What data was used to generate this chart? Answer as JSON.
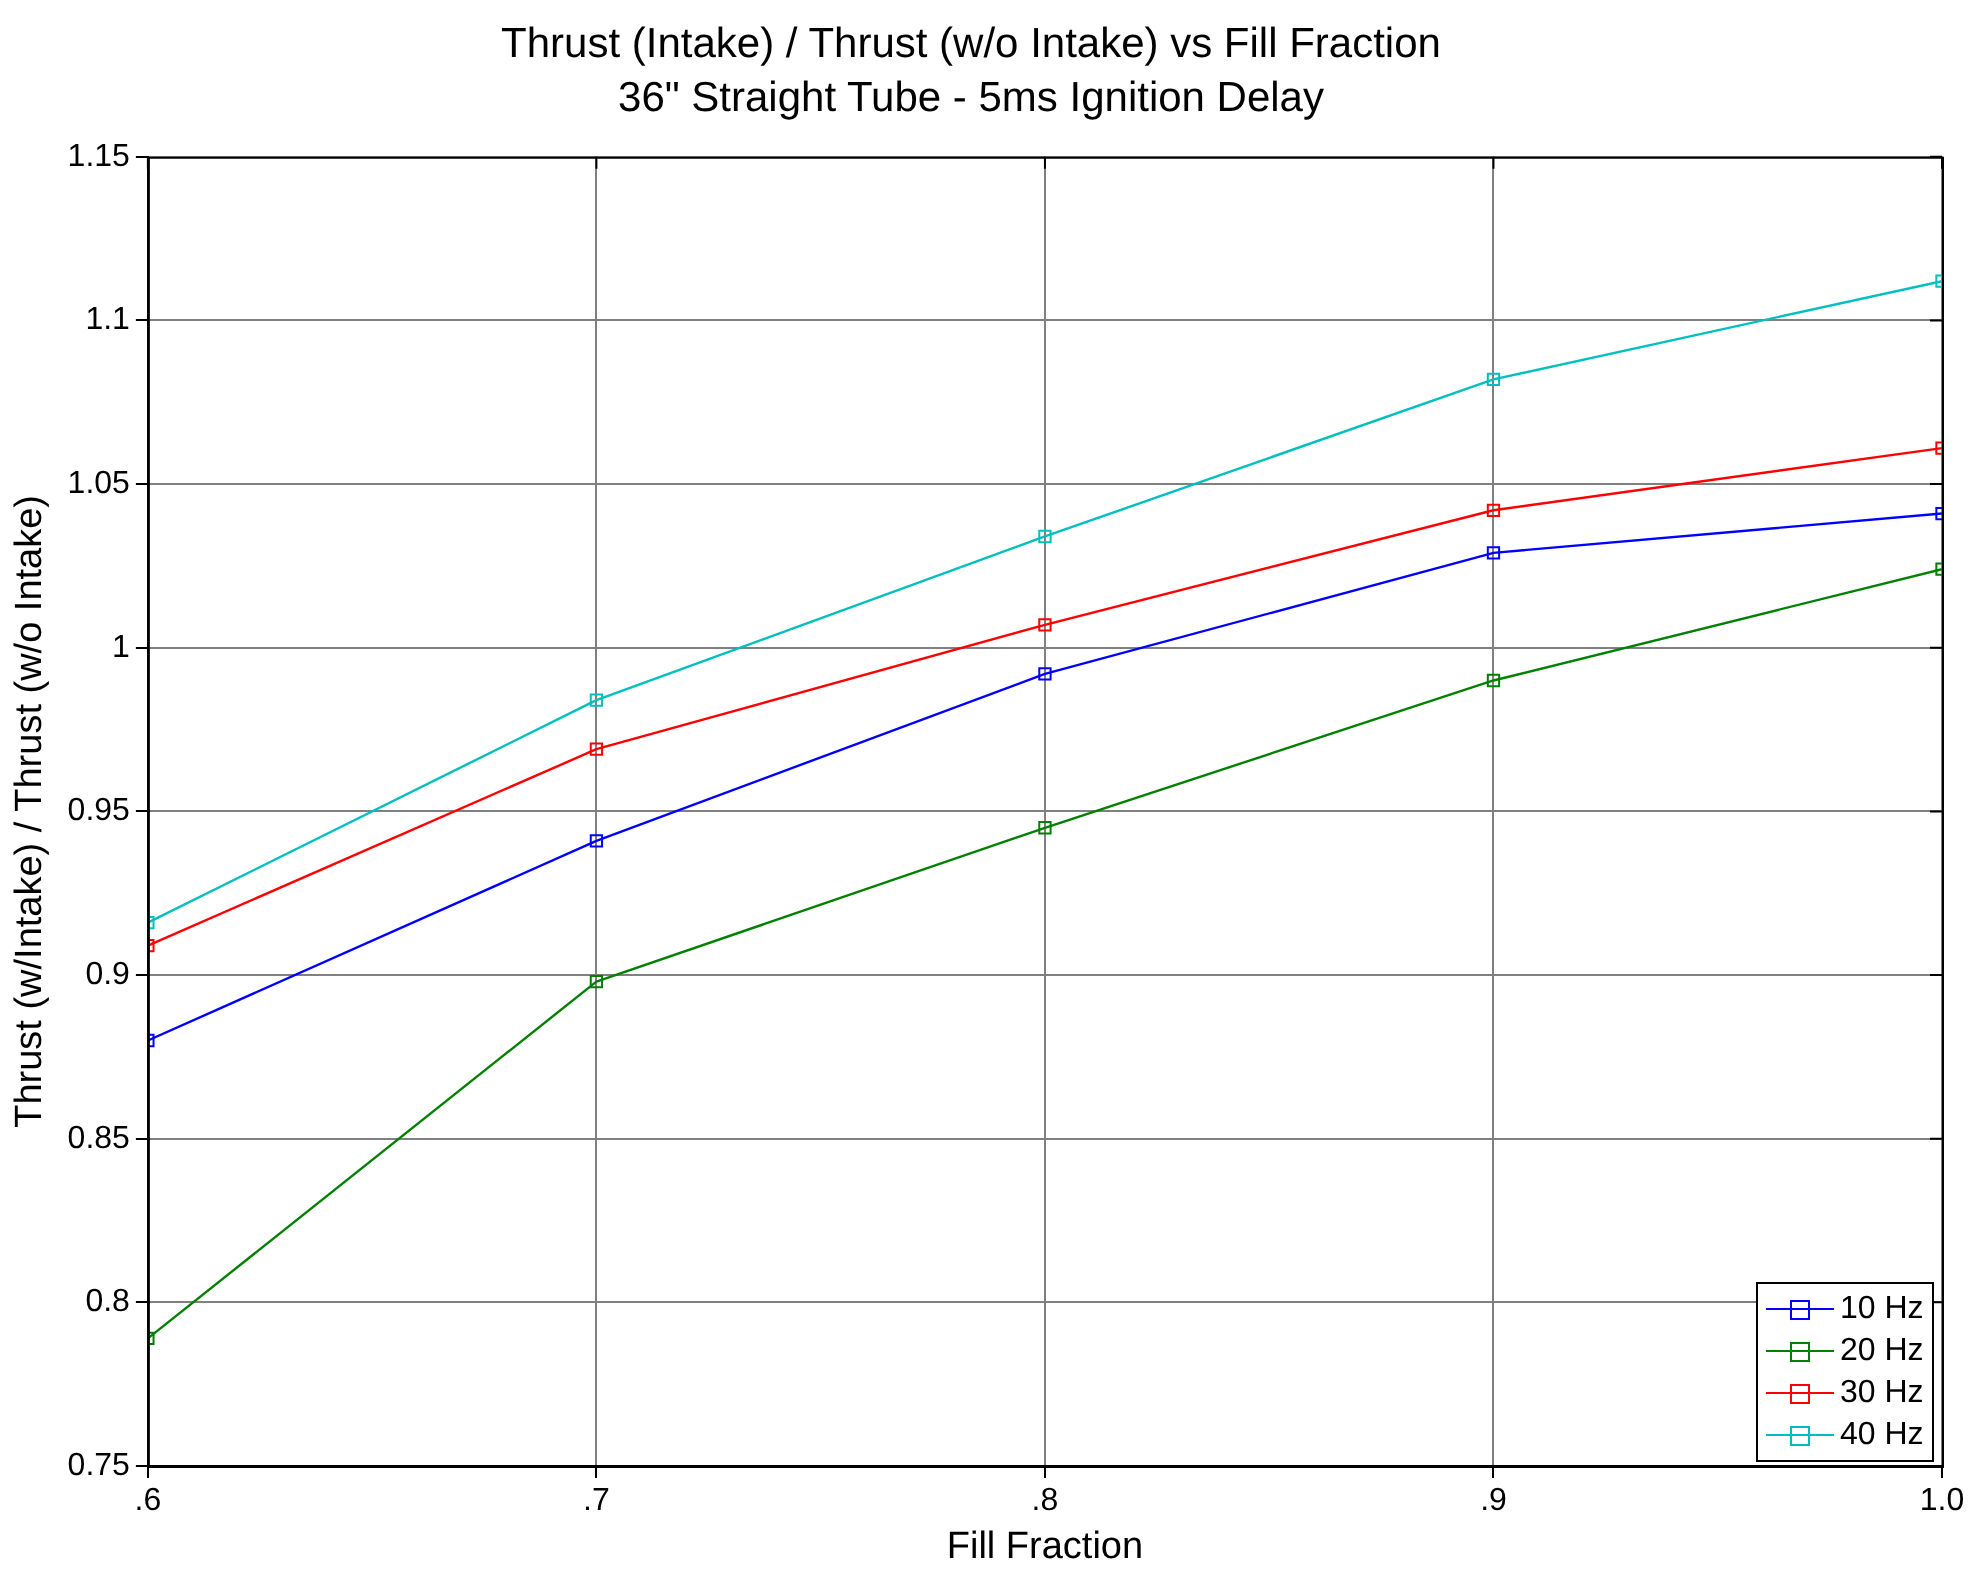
{
  "chart_data": {
    "type": "line",
    "title": "Thrust (Intake) / Thrust (w/o Intake) vs Fill Fraction",
    "subtitle": "36\" Straight Tube - 5ms Ignition Delay",
    "xlabel": "Fill Fraction",
    "ylabel": "Thrust (w/Intake) / Thrust (w/o Intake)",
    "x": [
      0.6,
      0.7,
      0.8,
      0.9,
      1.0
    ],
    "series": [
      {
        "name": "10 Hz",
        "color": "#0000ff",
        "values": [
          0.88,
          0.941,
          0.992,
          1.029,
          1.041
        ]
      },
      {
        "name": "20 Hz",
        "color": "#008000",
        "values": [
          0.789,
          0.898,
          0.945,
          0.99,
          1.024
        ]
      },
      {
        "name": "30 Hz",
        "color": "#ff0000",
        "values": [
          0.909,
          0.969,
          1.007,
          1.042,
          1.061
        ]
      },
      {
        "name": "40 Hz",
        "color": "#00bfbf",
        "values": [
          0.916,
          0.984,
          1.034,
          1.082,
          1.112
        ]
      }
    ],
    "xlim": [
      0.6,
      1.0
    ],
    "xticks": [
      {
        "value": 0.6,
        "label": ".6"
      },
      {
        "value": 0.7,
        "label": ".7"
      },
      {
        "value": 0.8,
        "label": ".8"
      },
      {
        "value": 0.9,
        "label": ".9"
      },
      {
        "value": 1.0,
        "label": "1.0"
      }
    ],
    "ylim": [
      0.75,
      1.15
    ],
    "yticks": [
      0.75,
      0.8,
      0.85,
      0.9,
      0.95,
      1,
      1.05,
      1.1,
      1.15
    ],
    "grid": true,
    "legend": "bottom right",
    "marker": "square",
    "line_style": "solid"
  }
}
